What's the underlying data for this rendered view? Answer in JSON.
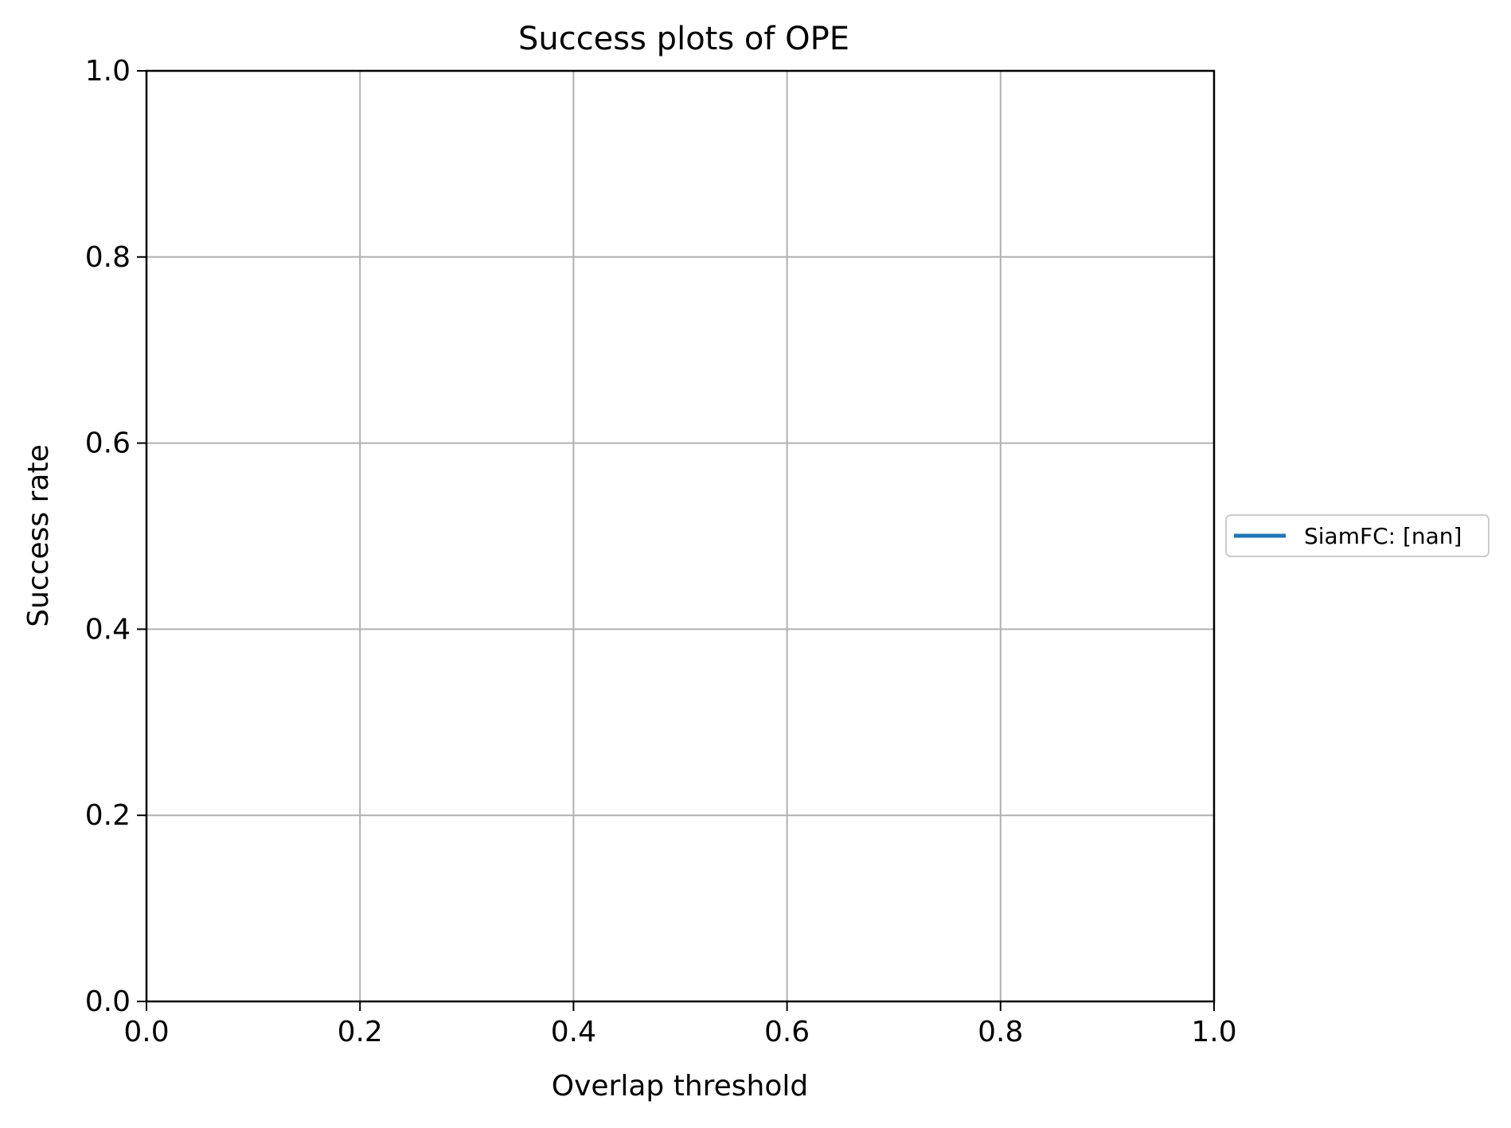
{
  "chart_data": {
    "type": "line",
    "title": "Success plots of OPE",
    "xlabel": "Overlap threshold",
    "ylabel": "Success rate",
    "xlim": [
      0,
      1
    ],
    "ylim": [
      0,
      1
    ],
    "xticks": [
      "0.0",
      "0.2",
      "0.4",
      "0.6",
      "0.8",
      "1.0"
    ],
    "yticks": [
      "0.0",
      "0.2",
      "0.4",
      "0.6",
      "0.8",
      "1.0"
    ],
    "grid": true,
    "legend_placement": "center-right-outside",
    "series": [
      {
        "name": "SiamFC: [nan]",
        "color": "#1f77b4",
        "x": [],
        "y": []
      }
    ]
  }
}
